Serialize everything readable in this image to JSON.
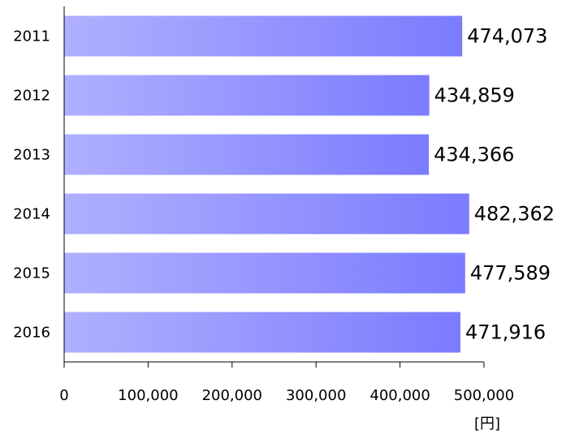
{
  "chart_data": {
    "type": "bar",
    "orientation": "horizontal",
    "categories": [
      "2011",
      "2012",
      "2013",
      "2014",
      "2015",
      "2016"
    ],
    "values": [
      474073,
      434859,
      434366,
      482362,
      477589,
      471916
    ],
    "data_labels": [
      "474,073",
      "434,859",
      "434,366",
      "482,362",
      "477,589",
      "471,916"
    ],
    "xlim": [
      0,
      500000
    ],
    "xticks": [
      0,
      100000,
      200000,
      300000,
      400000,
      500000
    ],
    "xtick_labels": [
      "0",
      "100,000",
      "200,000",
      "300,000",
      "400,000",
      "500,000"
    ],
    "unit_label": "[円]",
    "grid": false,
    "colors": {
      "bar_start": "#b0b0ff",
      "bar_end": "#7b7bff"
    }
  }
}
